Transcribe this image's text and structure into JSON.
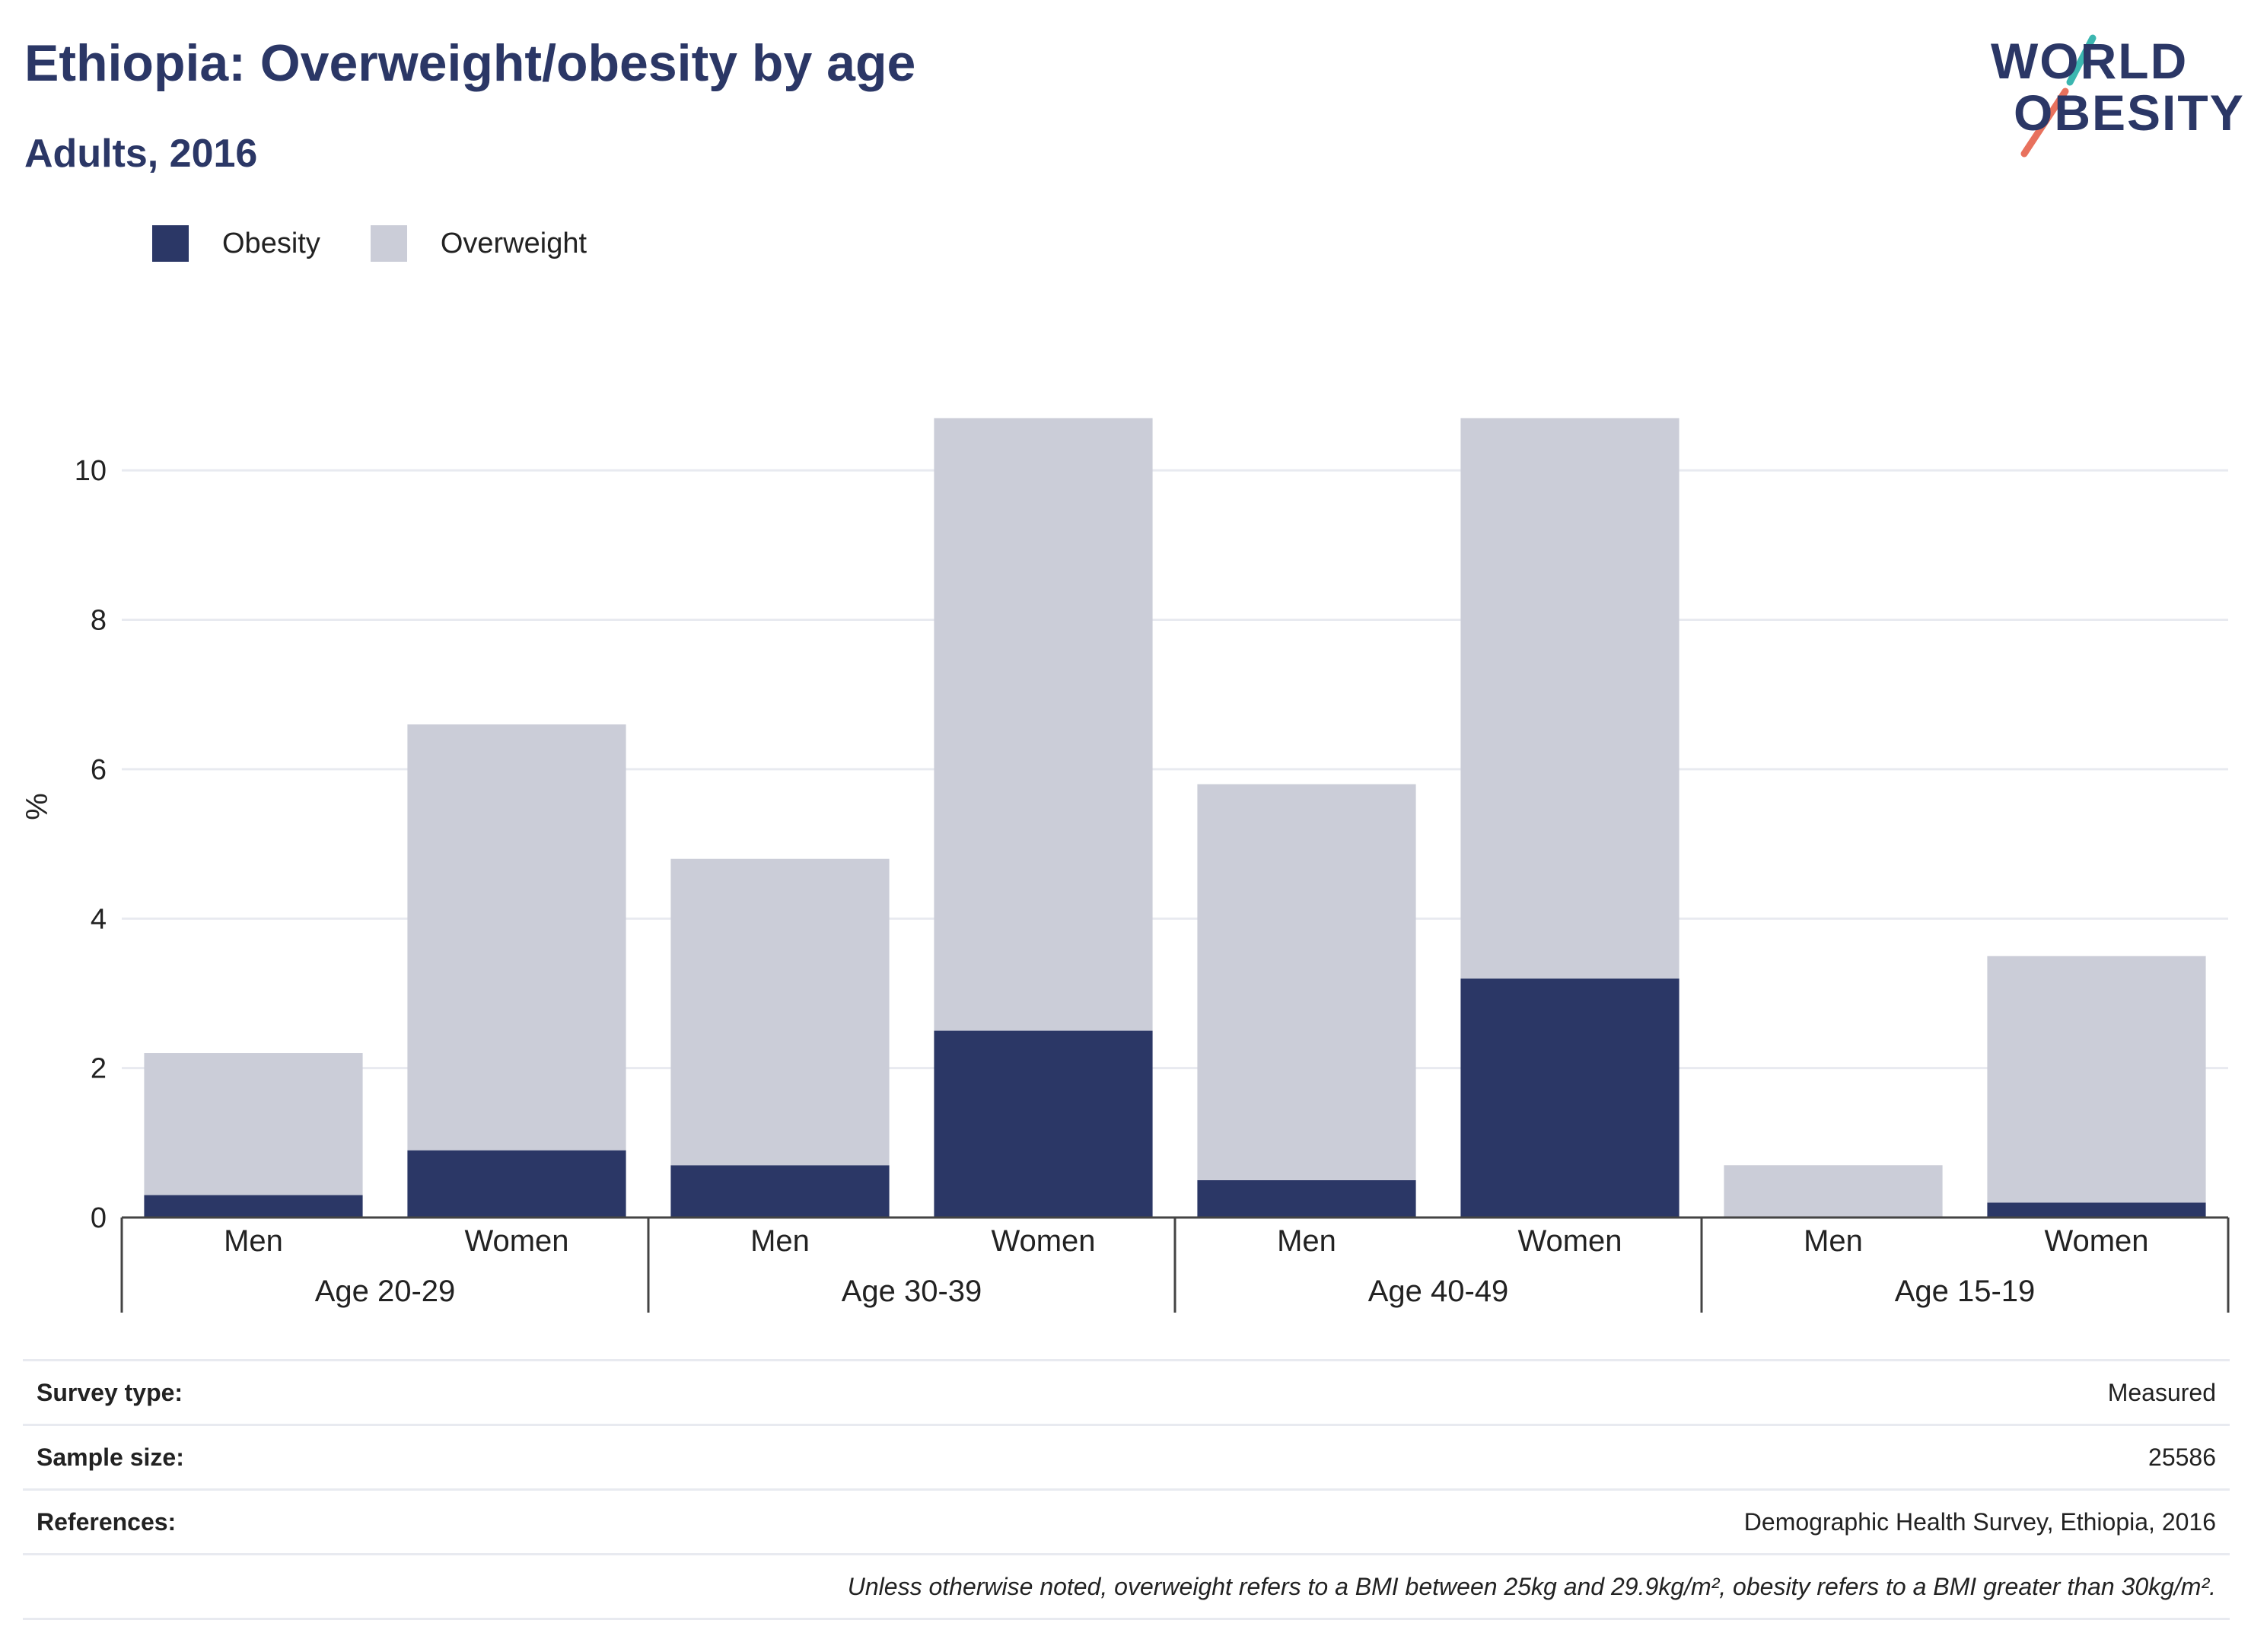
{
  "header": {
    "title": "Ethiopia: Overweight/obesity by age",
    "subtitle": "Adults, 2016"
  },
  "logo": {
    "line1": "WORLD",
    "line2": "OBESITY",
    "accent_teal": "#3bb6b0",
    "accent_coral": "#e8715d"
  },
  "legend": [
    {
      "label": "Obesity",
      "color": "#2b3766"
    },
    {
      "label": "Overweight",
      "color": "#cbcdd8"
    }
  ],
  "chart_data": {
    "type": "bar",
    "stacked": true,
    "ylabel": "%",
    "ylim": [
      0,
      11
    ],
    "yticks": [
      0,
      2,
      4,
      6,
      8,
      10
    ],
    "grid": true,
    "groups": [
      "Age 20-29",
      "Age 30-39",
      "Age 40-49",
      "Age 15-19"
    ],
    "categories": [
      "Men",
      "Women",
      "Men",
      "Women",
      "Men",
      "Women",
      "Men",
      "Women"
    ],
    "series": [
      {
        "name": "Obesity",
        "color": "#2b3766",
        "values": [
          0.3,
          0.9,
          0.7,
          2.5,
          0.5,
          3.2,
          0.0,
          0.2
        ]
      },
      {
        "name": "Overweight",
        "color": "#cbcdd8",
        "values": [
          1.9,
          5.7,
          4.1,
          8.2,
          5.3,
          7.5,
          0.7,
          3.3
        ]
      }
    ]
  },
  "meta": {
    "rows": [
      {
        "label": "Survey type:",
        "value": "Measured"
      },
      {
        "label": "Sample size:",
        "value": "25586"
      },
      {
        "label": "References:",
        "value": "Demographic Health Survey, Ethiopia, 2016"
      }
    ],
    "note": "Unless otherwise noted, overweight refers to a BMI between 25kg and 29.9kg/m², obesity refers to a BMI greater than 30kg/m²."
  }
}
